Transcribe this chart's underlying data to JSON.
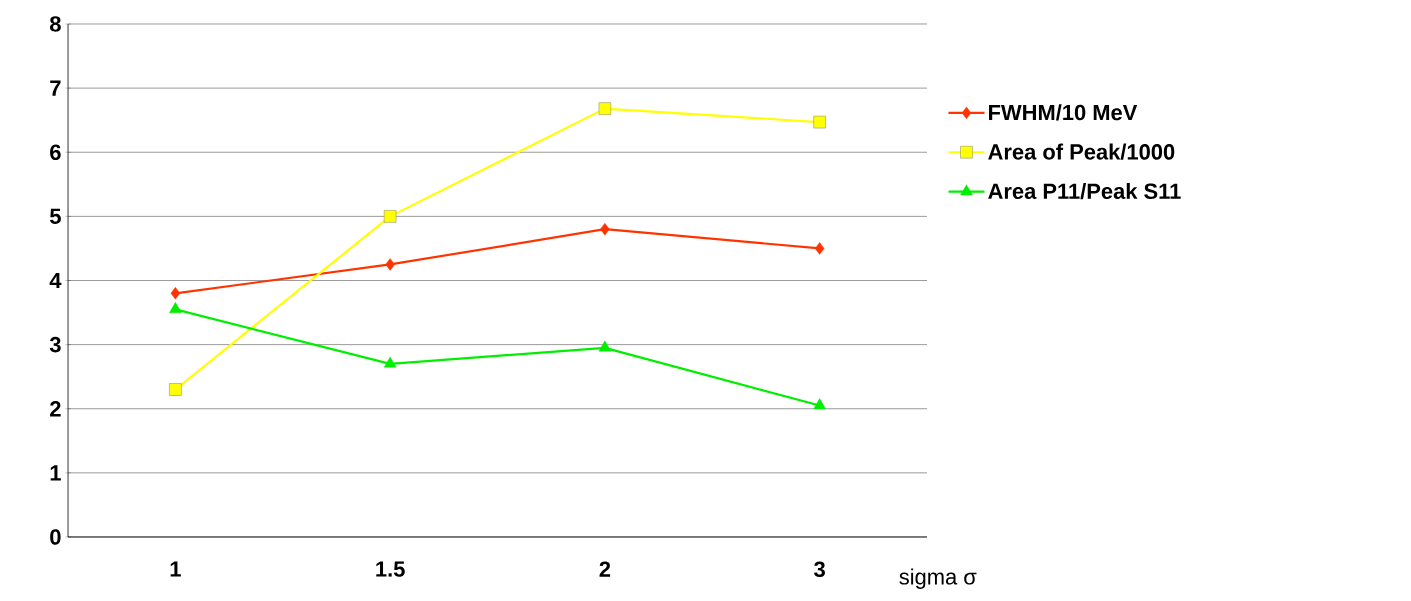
{
  "chart_data": {
    "type": "line",
    "xlabel": "sigma σ",
    "categories": [
      "1",
      "1.5",
      "2",
      "3"
    ],
    "series": [
      {
        "name": "FWHM/10 MeV",
        "color": "#ff3300",
        "marker": "diamond",
        "values": [
          3.8,
          4.25,
          4.8,
          4.5
        ]
      },
      {
        "name": "Area of Peak/1000",
        "color": "#ffff00",
        "marker": "square",
        "values": [
          2.3,
          5.0,
          6.68,
          6.47
        ]
      },
      {
        "name": "Area P11/Peak S11",
        "color": "#00ee00",
        "marker": "triangle",
        "values": [
          3.55,
          2.7,
          2.95,
          2.05
        ]
      }
    ],
    "ylim": [
      0,
      8
    ],
    "yticks": [
      0,
      1,
      2,
      3,
      4,
      5,
      6,
      7,
      8
    ],
    "grid": "y",
    "legend": "right",
    "line_style": "solid"
  }
}
